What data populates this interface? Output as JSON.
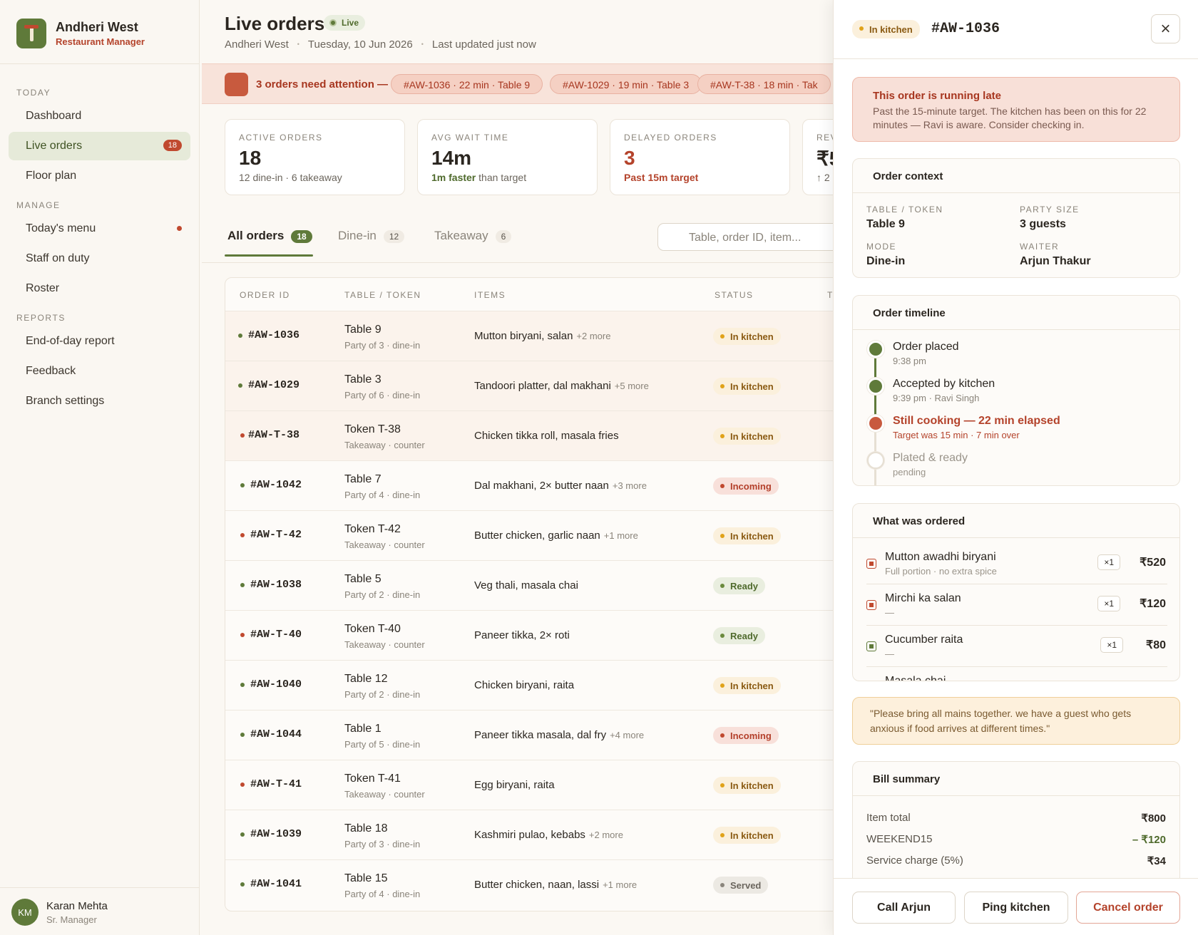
{
  "sidebar": {
    "brand": {
      "name": "Andheri West",
      "role": "Restaurant Manager"
    },
    "sections": [
      {
        "title": "TODAY",
        "items": [
          {
            "label": "Dashboard"
          },
          {
            "label": "Live orders",
            "badge": "18"
          },
          {
            "label": "Floor plan"
          }
        ]
      },
      {
        "title": "MANAGE",
        "items": [
          {
            "label": "Today's menu"
          },
          {
            "label": "Staff on duty"
          },
          {
            "label": "Roster"
          }
        ]
      },
      {
        "title": "REPORTS",
        "items": [
          {
            "label": "End-of-day report"
          },
          {
            "label": "Feedback"
          },
          {
            "label": "Branch settings"
          }
        ]
      }
    ],
    "user": {
      "initials": "KM",
      "name": "Karan Mehta",
      "role": "Sr. Manager"
    }
  },
  "header": {
    "title": "Live orders",
    "badge": "Live",
    "location": "Andheri West",
    "date": "Tuesday, 10 Jun 2026",
    "updated": "Last updated just now"
  },
  "attention": {
    "text": "3 orders need attention —",
    "chips": [
      "#AW-1036 · 22 min · Table 9",
      "#AW-1029 · 19 min · Table 3",
      "#AW-T-38 · 18 min · Tak"
    ]
  },
  "stats": [
    {
      "label": "ACTIVE ORDERS",
      "value": "18",
      "sub": "12 dine-in · 6 takeaway"
    },
    {
      "label": "AVG WAIT TIME",
      "value": "14m",
      "sub_strong": "1m faster",
      "sub": "than target"
    },
    {
      "label": "DELAYED ORDERS",
      "value": "3",
      "sub_alert": "Past 15m target"
    },
    {
      "label": "REV",
      "value": "₹5",
      "sub": "↑ 2"
    }
  ],
  "tabs": [
    {
      "label": "All orders",
      "count": "18"
    },
    {
      "label": "Dine-in",
      "count": "12"
    },
    {
      "label": "Takeaway",
      "count": "6"
    }
  ],
  "search": {
    "placeholder": "Table, order ID, item..."
  },
  "table": {
    "columns": [
      "ORDER ID",
      "TABLE / TOKEN",
      "ITEMS",
      "STATUS",
      "T"
    ],
    "rows": [
      {
        "id": "#AW-1036",
        "table": "Table 9",
        "sub": "Party of 3 · dine-in",
        "items": "Mutton biryani, salan",
        "more": "+2 more",
        "status": "In kitchen"
      },
      {
        "id": "#AW-1029",
        "table": "Table 3",
        "sub": "Party of 6 · dine-in",
        "items": "Tandoori platter, dal makhani",
        "more": "+5 more",
        "status": "In kitchen"
      },
      {
        "id": "#AW-T-38",
        "table": "Token T-38",
        "sub": "Takeaway · counter",
        "items": "Chicken tikka roll, masala fries",
        "status": "In kitchen"
      },
      {
        "id": "#AW-1042",
        "table": "Table 7",
        "sub": "Party of 4 · dine-in",
        "items": "Dal makhani, 2× butter naan",
        "more": "+3 more",
        "status": "Incoming"
      },
      {
        "id": "#AW-T-42",
        "table": "Token T-42",
        "sub": "Takeaway · counter",
        "items": "Butter chicken, garlic naan",
        "more": "+1 more",
        "status": "In kitchen"
      },
      {
        "id": "#AW-1038",
        "table": "Table 5",
        "sub": "Party of 2 · dine-in",
        "items": "Veg thali, masala chai",
        "status": "Ready"
      },
      {
        "id": "#AW-T-40",
        "table": "Token T-40",
        "sub": "Takeaway · counter",
        "items": "Paneer tikka, 2× roti",
        "status": "Ready"
      },
      {
        "id": "#AW-1040",
        "table": "Table 12",
        "sub": "Party of 2 · dine-in",
        "items": "Chicken biryani, raita",
        "status": "In kitchen"
      },
      {
        "id": "#AW-1044",
        "table": "Table 1",
        "sub": "Party of 5 · dine-in",
        "items": "Paneer tikka masala, dal fry",
        "more": "+4 more",
        "status": "Incoming"
      },
      {
        "id": "#AW-T-41",
        "table": "Token T-41",
        "sub": "Takeaway · counter",
        "items": "Egg biryani, raita",
        "status": "In kitchen"
      },
      {
        "id": "#AW-1039",
        "table": "Table 18",
        "sub": "Party of 3 · dine-in",
        "items": "Kashmiri pulao, kebabs",
        "more": "+2 more",
        "status": "In kitchen"
      },
      {
        "id": "#AW-1041",
        "table": "Table 15",
        "sub": "Party of 4 · dine-in",
        "items": "Butter chicken, naan, lassi",
        "more": "+1 more",
        "status": "Served"
      }
    ]
  },
  "panel": {
    "status": "In kitchen",
    "order_id": "#AW-1036",
    "close": "×",
    "alert": {
      "title": "This order is running late",
      "text": "Past the 15-minute target. The kitchen has been on this for 22 minutes — Ravi is aware. Consider checking in."
    },
    "context": {
      "title": "Order context",
      "fields": [
        {
          "label": "TABLE / TOKEN",
          "value": "Table 9"
        },
        {
          "label": "PARTY SIZE",
          "value": "3 guests"
        },
        {
          "label": "MODE",
          "value": "Dine-in"
        },
        {
          "label": "WAITER",
          "value": "Arjun Thakur"
        }
      ]
    },
    "timeline": {
      "title": "Order timeline",
      "steps": [
        {
          "title": "Order placed",
          "sub": "9:38 pm"
        },
        {
          "title": "Accepted by kitchen",
          "sub": "9:39 pm · Ravi Singh"
        },
        {
          "title": "Still cooking — 22 min elapsed",
          "sub": "Target was 15 min · 7 min over"
        },
        {
          "title": "Plated & ready",
          "sub": "pending"
        }
      ]
    },
    "ordered": {
      "title": "What was ordered",
      "items": [
        {
          "name": "Mutton awadhi biryani",
          "note": "Full portion · no extra spice",
          "qty": "×1",
          "price": "₹520"
        },
        {
          "name": "Mirchi ka salan",
          "note": "—",
          "qty": "×1",
          "price": "₹120"
        },
        {
          "name": "Cucumber raita",
          "note": "—",
          "qty": "×1",
          "price": "₹80"
        },
        {
          "name": "Masala chai"
        }
      ]
    },
    "note": "\"Please bring all mains together. we have a guest who gets anxious if food arrives at different times.\"",
    "bill": {
      "title": "Bill summary",
      "lines": [
        {
          "label": "Item total",
          "value": "₹800"
        },
        {
          "label": "WEEKEND15",
          "value": "– ₹120"
        },
        {
          "label": "Service charge (5%)",
          "value": "₹34"
        }
      ]
    },
    "actions": [
      "Call Arjun",
      "Ping kitchen",
      "Cancel order"
    ]
  }
}
